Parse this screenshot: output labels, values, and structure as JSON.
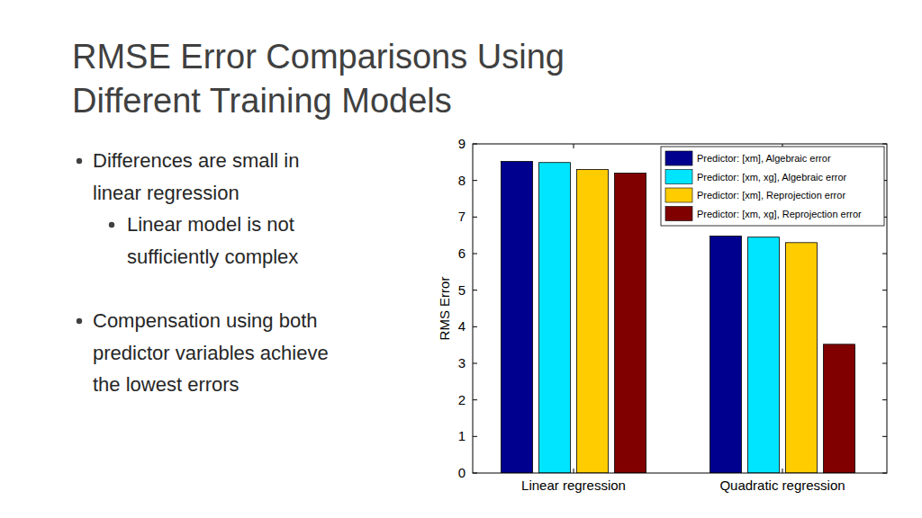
{
  "slide": {
    "title": [
      "RMSE Error Comparisons Using",
      "Different Training Models"
    ],
    "bullets": [
      {
        "level": 1,
        "lines": [
          "Differences are small in",
          "linear regression"
        ]
      },
      {
        "level": 2,
        "lines": [
          "Linear model is not",
          "sufficiently complex"
        ]
      },
      {
        "level": 1,
        "lines": [
          "Compensation using both",
          "predictor variables achieve",
          "the lowest errors"
        ]
      }
    ]
  },
  "chart_data": {
    "type": "bar",
    "categories": [
      "Linear regression",
      "Quadratic regression"
    ],
    "series": [
      {
        "name": "Predictor: [xm], Algebraic error",
        "color": "#00008f",
        "values": [
          8.52,
          6.48
        ]
      },
      {
        "name": "Predictor: [xm, xg], Algebraic error",
        "color": "#00e5ff",
        "values": [
          8.49,
          6.45
        ]
      },
      {
        "name": "Predictor: [xm], Reprojection error",
        "color": "#ffcc00",
        "values": [
          8.3,
          6.3
        ]
      },
      {
        "name": "Predictor: [xm, xg], Reprojection error",
        "color": "#800000",
        "values": [
          8.2,
          3.52
        ]
      }
    ],
    "y_label": "RMS Error",
    "ylim": [
      0,
      9
    ],
    "yticks": [
      0,
      1,
      2,
      3,
      4,
      5,
      6,
      7,
      8,
      9
    ],
    "grid": false,
    "legend": "upper right"
  }
}
